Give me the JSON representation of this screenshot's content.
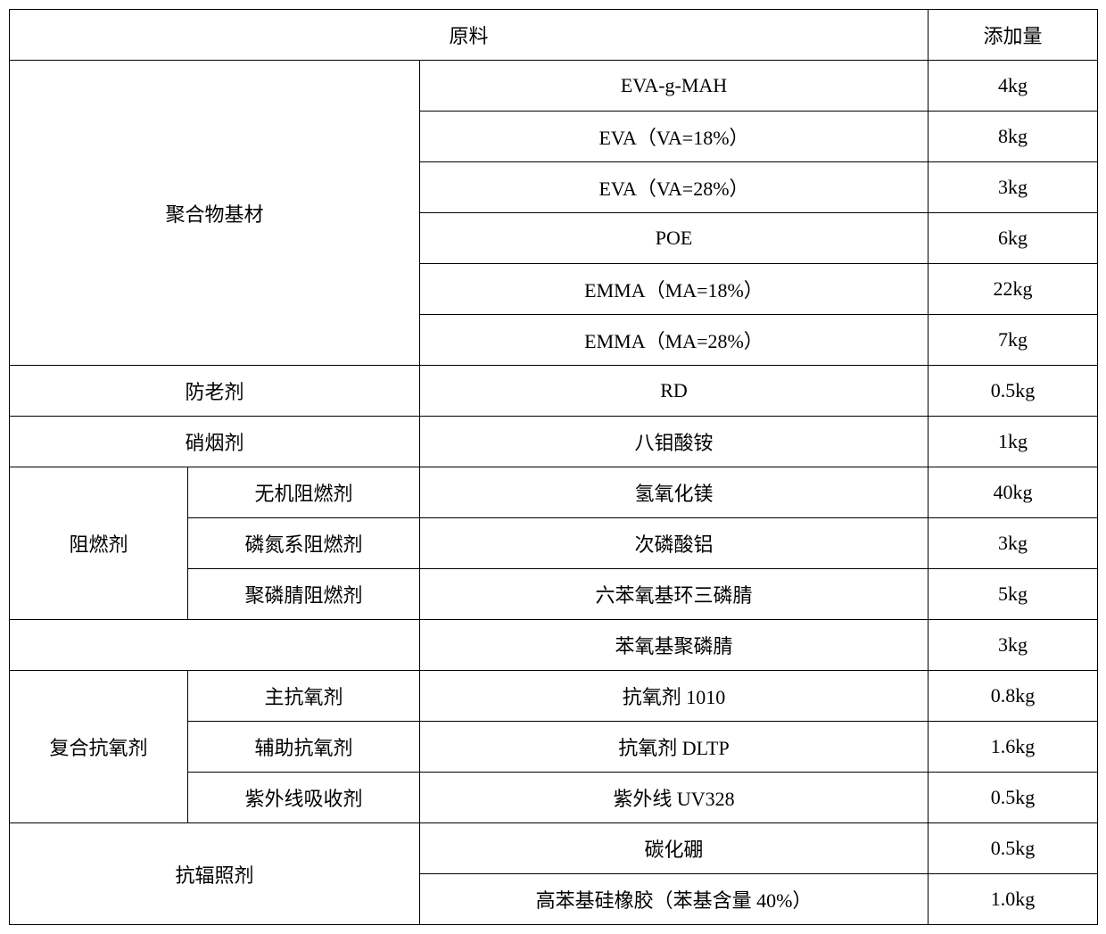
{
  "header": {
    "raw_material": "原料",
    "amount": "添加量"
  },
  "groups": [
    {
      "category": "聚合物基材",
      "subcategory_cells": false,
      "rows": [
        {
          "material": "EVA-g-MAH",
          "amount": "4kg"
        },
        {
          "material": "EVA（VA=18%）",
          "amount": "8kg"
        },
        {
          "material": "EVA（VA=28%）",
          "amount": "3kg"
        },
        {
          "material": "POE",
          "amount": "6kg"
        },
        {
          "material": "EMMA（MA=18%）",
          "amount": "22kg"
        },
        {
          "material": "EMMA（MA=28%）",
          "amount": "7kg"
        }
      ]
    },
    {
      "category": "防老剂",
      "rows": [
        {
          "material": "RD",
          "amount": "0.5kg"
        }
      ]
    },
    {
      "category": "硝烟剂",
      "rows": [
        {
          "material": "八钼酸铵",
          "amount": "1kg"
        }
      ]
    },
    {
      "category": "阻燃剂",
      "sub_rows": [
        {
          "sub": "无机阻燃剂",
          "material": "氢氧化镁",
          "amount": "40kg"
        },
        {
          "sub": "磷氮系阻燃剂",
          "material": "次磷酸铝",
          "amount": "3kg"
        },
        {
          "sub": "聚磷腈阻燃剂",
          "material": "六苯氧基环三磷腈",
          "amount": "5kg"
        }
      ]
    },
    {
      "category_blank": true,
      "rows": [
        {
          "material": "苯氧基聚磷腈",
          "amount": "3kg"
        }
      ]
    },
    {
      "category": "复合抗氧剂",
      "sub_rows": [
        {
          "sub": "主抗氧剂",
          "material": "抗氧剂 1010",
          "amount": "0.8kg"
        },
        {
          "sub": "辅助抗氧剂",
          "material": "抗氧剂 DLTP",
          "amount": "1.6kg"
        },
        {
          "sub": "紫外线吸收剂",
          "material": "紫外线 UV328",
          "amount": "0.5kg"
        }
      ]
    },
    {
      "category": "抗辐照剂",
      "subcategory_cells": false,
      "rows": [
        {
          "material": "碳化硼",
          "amount": "0.5kg"
        },
        {
          "material": "高苯基硅橡胶（苯基含量 40%）",
          "amount": "1.0kg"
        }
      ]
    }
  ]
}
